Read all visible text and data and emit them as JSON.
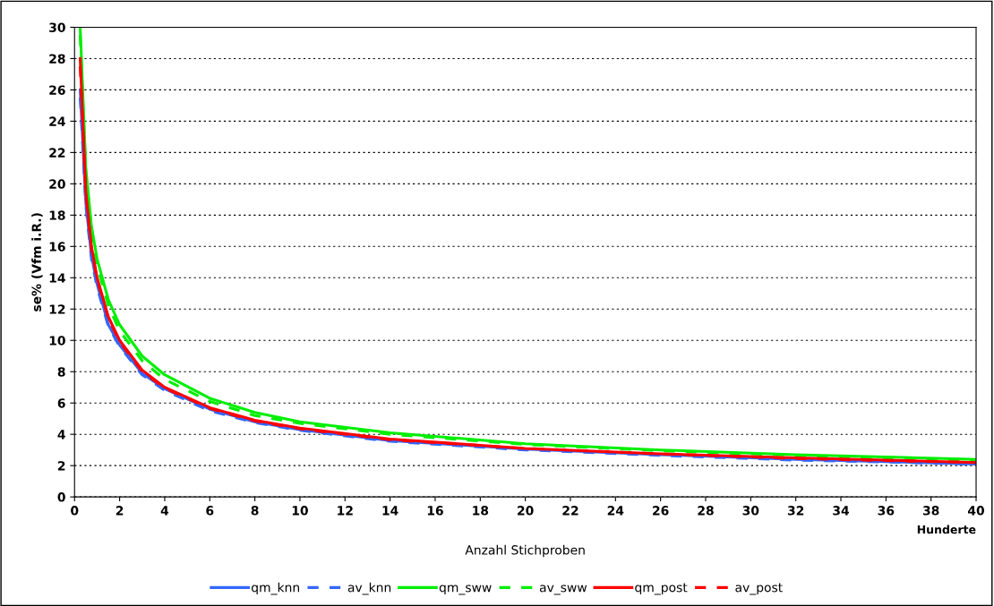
{
  "chart_data": {
    "type": "line",
    "xlabel": "Anzahl Stichproben",
    "ylabel": "se% (Vfm i.R.)",
    "annotations": [
      "Hunderte"
    ],
    "x": [
      0.25,
      0.5,
      0.75,
      1,
      1.5,
      2,
      3,
      4,
      6,
      8,
      10,
      14,
      20,
      26,
      32,
      40
    ],
    "xlim": [
      0,
      40
    ],
    "xticks": [
      0,
      2,
      4,
      6,
      8,
      10,
      12,
      14,
      16,
      18,
      20,
      22,
      24,
      26,
      28,
      30,
      32,
      34,
      36,
      38,
      40
    ],
    "ylim": [
      0,
      30
    ],
    "yticks": [
      0,
      2,
      4,
      6,
      8,
      10,
      12,
      14,
      16,
      18,
      20,
      22,
      24,
      26,
      28,
      30
    ],
    "grid": "y",
    "legend": "bottom",
    "marker": "none",
    "series": [
      {
        "name": "qm_knn",
        "color": "#3366ff",
        "line_style": "solid",
        "values": [
          26,
          18.8,
          15.4,
          13.6,
          11,
          9.7,
          7.9,
          6.9,
          5.6,
          4.8,
          4.3,
          3.6,
          3.05,
          2.7,
          2.4,
          2.1
        ]
      },
      {
        "name": "av_knn",
        "color": "#3366ff",
        "line_style": "dashed",
        "values": [
          25.5,
          18.6,
          15.2,
          13.4,
          10.9,
          9.6,
          7.8,
          6.8,
          5.5,
          4.75,
          4.25,
          3.55,
          3.0,
          2.65,
          2.35,
          2.1
        ]
      },
      {
        "name": "qm_sww",
        "color": "#00ee00",
        "line_style": "solid",
        "values": [
          30,
          21,
          17.3,
          15.2,
          12.6,
          11,
          9,
          7.8,
          6.3,
          5.4,
          4.8,
          4.1,
          3.4,
          3.0,
          2.7,
          2.4
        ]
      },
      {
        "name": "av_sww",
        "color": "#00ee00",
        "line_style": "dashed",
        "values": [
          29.5,
          20.6,
          17,
          14.8,
          12.2,
          10.6,
          8.7,
          7.5,
          6.1,
          5.2,
          4.7,
          4.0,
          3.35,
          2.95,
          2.65,
          2.35
        ]
      },
      {
        "name": "qm_post",
        "color": "#ff0000",
        "line_style": "solid",
        "values": [
          28,
          19.5,
          16,
          14,
          11.5,
          10,
          8.1,
          7.0,
          5.7,
          4.9,
          4.4,
          3.7,
          3.1,
          2.75,
          2.5,
          2.2
        ]
      },
      {
        "name": "av_post",
        "color": "#ff0000",
        "line_style": "dashed",
        "values": [
          27.5,
          19.3,
          15.8,
          13.9,
          11.4,
          9.9,
          8.0,
          6.95,
          5.65,
          4.85,
          4.35,
          3.65,
          3.1,
          2.75,
          2.45,
          2.2
        ]
      }
    ]
  }
}
